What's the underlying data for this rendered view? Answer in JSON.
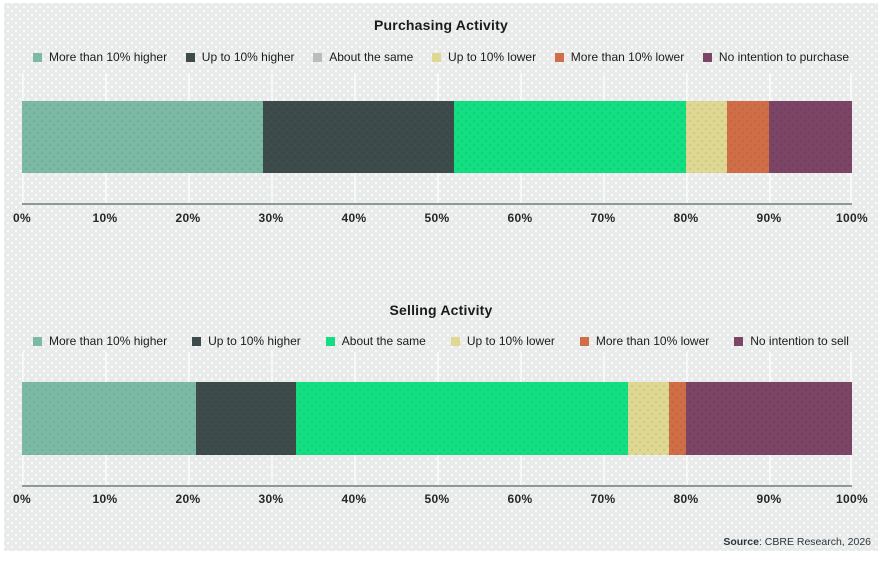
{
  "source": {
    "label": "Source",
    "text": ": CBRE Research, 2026"
  },
  "palette": {
    "background": "#e9eaea",
    "axis_line": "#8f9898",
    "gridline": "#f7f8f8",
    "title_text": "#1b1b1b",
    "tick_text": "#272727"
  },
  "chart_data": [
    {
      "type": "bar",
      "stacked": true,
      "orientation": "horizontal",
      "title": "Purchasing Activity",
      "categories": [
        "More than 10% higher",
        "Up to 10% higher",
        "About the same",
        "Up to 10% lower",
        "More than 10% lower",
        "No intention to purchase"
      ],
      "values": [
        29,
        23,
        28,
        5,
        5,
        10
      ],
      "unit": "%",
      "colors": [
        "#7dbaa5",
        "#3d4c4b",
        "#13de82",
        "#ded892",
        "#d06f47",
        "#7c4566"
      ],
      "legend_colors": [
        "#7dbaa5",
        "#3d4c4b",
        "#b9bdbd",
        "#ded892",
        "#d06f47",
        "#7c4566"
      ],
      "xlim": [
        0,
        100
      ],
      "x_tick_labels": [
        "0%",
        "10%",
        "20%",
        "30%",
        "40%",
        "50%",
        "60%",
        "70%",
        "80%",
        "90%",
        "100%"
      ],
      "grid": true,
      "legend_position": "top"
    },
    {
      "type": "bar",
      "stacked": true,
      "orientation": "horizontal",
      "title": "Selling Activity",
      "categories": [
        "More than 10% higher",
        "Up to 10% higher",
        "About the same",
        "Up to 10% lower",
        "More than 10% lower",
        "No intention to sell"
      ],
      "values": [
        21,
        12,
        40,
        5,
        2,
        20
      ],
      "unit": "%",
      "colors": [
        "#7dbaa5",
        "#3d4c4b",
        "#13de82",
        "#ded892",
        "#d06f47",
        "#7c4566"
      ],
      "legend_colors": [
        "#7dbaa5",
        "#3d4c4b",
        "#13de82",
        "#ded892",
        "#d06f47",
        "#7c4566"
      ],
      "xlim": [
        0,
        100
      ],
      "x_tick_labels": [
        "0%",
        "10%",
        "20%",
        "30%",
        "40%",
        "50%",
        "60%",
        "70%",
        "80%",
        "90%",
        "100%"
      ],
      "grid": true,
      "legend_position": "top"
    }
  ]
}
